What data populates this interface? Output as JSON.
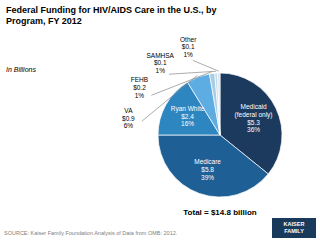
{
  "chart_data": {
    "type": "pie",
    "title": "Federal Funding for HIV/AIDS Care in the U.S., by\nProgram, FY 2012",
    "subtitle": "In Billions",
    "categories": [
      "Medicaid\n(federal only)\n$5.3\n36%",
      "Medicare\n$5.8\n39%",
      "Ryan White\n$2.4\n16%",
      "VA\n$0.9\n6%",
      "FEHB\n$0.2\n1%",
      "SAMHSA\n$0.1\n1%",
      "Other\n$0.1\n1%"
    ],
    "values": [
      5.3,
      5.8,
      2.4,
      0.9,
      0.2,
      0.1,
      0.1
    ],
    "colors": [
      "#1b3a5e",
      "#1e6096",
      "#2e86c1",
      "#5dade2",
      "#a9cce3",
      "#c5d8e8",
      "#d6e6f0"
    ],
    "annotations": [
      "Total = $14.8 billion",
      "SOURCE: Kaiser Family Foundation Analysis of Data from OMB: 2012.",
      "KAISER\nFAMILY"
    ]
  }
}
